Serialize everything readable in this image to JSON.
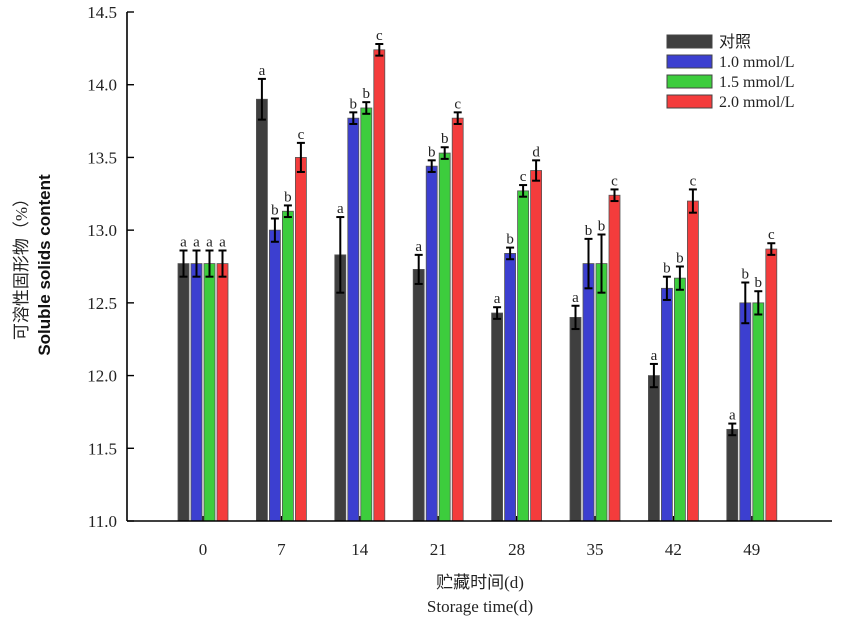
{
  "chart_data": {
    "type": "bar",
    "title": "",
    "xlabel": [
      "贮藏时间(d)",
      "Storage time(d)"
    ],
    "ylabel": [
      "可溶性固形物（%）",
      "Soluble solids content"
    ],
    "ylim": [
      11.0,
      14.5
    ],
    "yticks": [
      "11.0",
      "11.5",
      "12.0",
      "12.5",
      "13.0",
      "13.5",
      "14.0",
      "14.5"
    ],
    "categories": [
      "0",
      "7",
      "14",
      "21",
      "28",
      "35",
      "42",
      "49"
    ],
    "grid": false,
    "legend_position": "top-right",
    "series": [
      {
        "name": "对照",
        "color": "#3f3f3f",
        "values": [
          12.77,
          13.9,
          12.83,
          12.73,
          12.43,
          12.4,
          12.0,
          11.63
        ],
        "errors": [
          0.09,
          0.14,
          0.26,
          0.1,
          0.04,
          0.08,
          0.08,
          0.04
        ],
        "sig": [
          "a",
          "a",
          "a",
          "a",
          "a",
          "a",
          "a",
          "a"
        ]
      },
      {
        "name": "1.0 mmol/L",
        "color": "#3c3fd0",
        "values": [
          12.77,
          13.0,
          13.77,
          13.44,
          12.84,
          12.77,
          12.6,
          12.5
        ],
        "errors": [
          0.09,
          0.08,
          0.04,
          0.04,
          0.04,
          0.17,
          0.08,
          0.14
        ],
        "sig": [
          "a",
          "b",
          "b",
          "b",
          "b",
          "b",
          "b",
          "b"
        ]
      },
      {
        "name": "1.5 mmol/L",
        "color": "#3dcd3d",
        "values": [
          12.77,
          13.13,
          13.84,
          13.53,
          13.27,
          12.77,
          12.67,
          12.5
        ],
        "errors": [
          0.09,
          0.04,
          0.04,
          0.04,
          0.04,
          0.2,
          0.08,
          0.08
        ],
        "sig": [
          "a",
          "b",
          "b",
          "b",
          "c",
          "b",
          "b",
          "b"
        ]
      },
      {
        "name": "2.0 mmol/L",
        "color": "#f43c3c",
        "values": [
          12.77,
          13.5,
          14.24,
          13.77,
          13.41,
          13.24,
          13.2,
          12.87
        ],
        "errors": [
          0.09,
          0.1,
          0.04,
          0.04,
          0.07,
          0.04,
          0.08,
          0.04
        ],
        "sig": [
          "a",
          "c",
          "c",
          "c",
          "d",
          "c",
          "c",
          "c"
        ]
      }
    ]
  }
}
